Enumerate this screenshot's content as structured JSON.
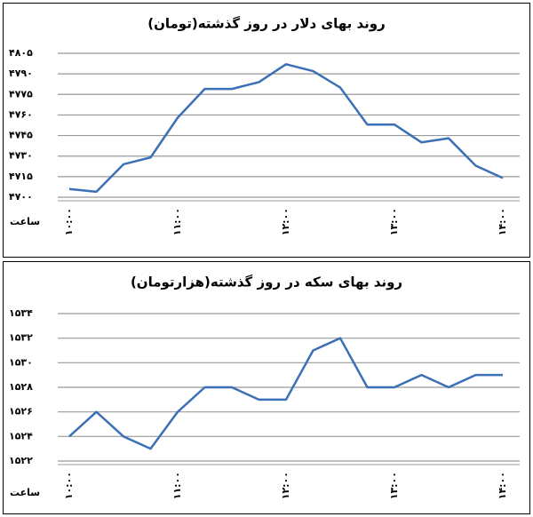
{
  "chart_data": [
    {
      "type": "line",
      "title": "روند بهای دلار در روز گذشته(تومان)",
      "xlabel": "ساعت",
      "categories": [
        "۱۰:۰۰",
        null,
        null,
        null,
        "۱۱:۰۰",
        null,
        null,
        null,
        "۱۲:۰۰",
        null,
        null,
        null,
        "۱۳:۰۰",
        null,
        null,
        null,
        "۱۴:۰۰"
      ],
      "values": [
        4706,
        4704,
        4724,
        4729,
        4758,
        4779,
        4779,
        4784,
        4797,
        4792,
        4780,
        4753,
        4753,
        4740,
        4743,
        4723,
        4714
      ],
      "color": "#3b6fb6",
      "grid": true,
      "ylim": [
        4700,
        4805
      ],
      "yticks": [
        {
          "value": 4700,
          "label": "۴۷۰۰"
        },
        {
          "value": 4715,
          "label": "۴۷۱۵"
        },
        {
          "value": 4730,
          "label": "۴۷۳۰"
        },
        {
          "value": 4745,
          "label": "۴۷۴۵"
        },
        {
          "value": 4760,
          "label": "۴۷۶۰"
        },
        {
          "value": 4775,
          "label": "۴۷۷۵"
        },
        {
          "value": 4790,
          "label": "۴۷۹۰"
        },
        {
          "value": 4805,
          "label": "۴۸۰۵"
        }
      ]
    },
    {
      "type": "line",
      "title": "روند بهای سکه در روز گذشته(هزارتومان)",
      "xlabel": "ساعت",
      "categories": [
        "۱۰:۰۰",
        null,
        null,
        null,
        "۱۱:۰۰",
        null,
        null,
        null,
        "۱۲:۰۰",
        null,
        null,
        null,
        "۱۳:۰۰",
        null,
        null,
        null,
        "۱۴:۰۰"
      ],
      "values": [
        1524,
        1526,
        1524,
        1523,
        1526,
        1528,
        1528,
        1527,
        1527,
        1531,
        1532,
        1528,
        1528,
        1529,
        1528,
        1529,
        1529
      ],
      "color": "#3b6fb6",
      "grid": true,
      "ylim": [
        1522,
        1534
      ],
      "yticks": [
        {
          "value": 1522,
          "label": "۱۵۲۲"
        },
        {
          "value": 1524,
          "label": "۱۵۲۴"
        },
        {
          "value": 1526,
          "label": "۱۵۲۶"
        },
        {
          "value": 1528,
          "label": "۱۵۲۸"
        },
        {
          "value": 1530,
          "label": "۱۵۳۰"
        },
        {
          "value": 1532,
          "label": "۱۵۳۲"
        },
        {
          "value": 1534,
          "label": "۱۵۳۴"
        }
      ]
    }
  ]
}
